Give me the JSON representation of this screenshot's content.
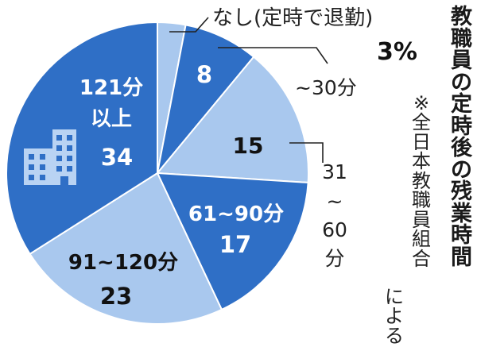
{
  "chart_data": {
    "type": "pie",
    "title": "教職員の定時後の残業時間",
    "note_line1": "※全日本教職員組合",
    "note_line2": "による",
    "slices": [
      {
        "label": "なし(定時で退勤)",
        "value_label": "3%",
        "value": 3,
        "color": "#a9c8ee",
        "label_inside": false
      },
      {
        "label": "~30分",
        "value_label": "8",
        "value": 8,
        "color": "#2f6fc6",
        "label_inside": false
      },
      {
        "label": "31~60分",
        "value_label": "15",
        "value": 15,
        "color": "#a9c8ee",
        "label_inside": false
      },
      {
        "label": "61~90分",
        "value_label": "17",
        "value": 17,
        "color": "#2f6fc6",
        "label_inside": true
      },
      {
        "label": "91~120分",
        "value_label": "23",
        "value": 23,
        "color": "#a9c8ee",
        "label_inside": true
      },
      {
        "label": "121分以上",
        "value_label": "34",
        "value": 34,
        "color": "#2f6fc6",
        "label_inside": true
      }
    ]
  }
}
